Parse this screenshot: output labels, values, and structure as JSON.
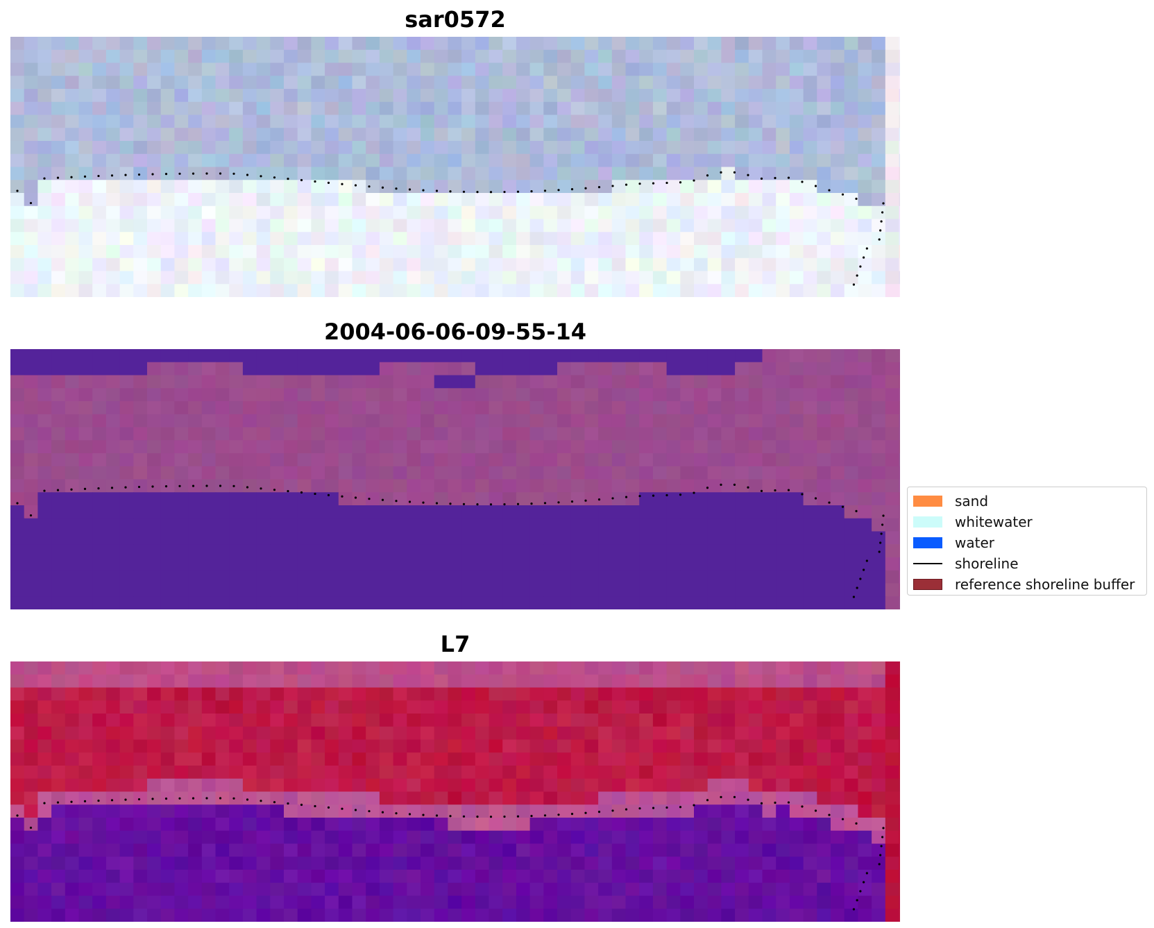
{
  "panels": [
    {
      "title": "sar0572",
      "style": "rgb"
    },
    {
      "title": "2004-06-06-09-55-14",
      "style": "classified"
    },
    {
      "title": "L7",
      "style": "index"
    }
  ],
  "legend": [
    {
      "label": "sand",
      "type": "patch",
      "color": "#ff8c42"
    },
    {
      "label": "whitewater",
      "type": "patch",
      "color": "#ccfcfa"
    },
    {
      "label": "water",
      "type": "patch",
      "color": "#0a5cff"
    },
    {
      "label": "shoreline",
      "type": "line",
      "color": "#000000"
    },
    {
      "label": "reference shoreline buffer",
      "type": "patch",
      "color": "#9b2f37",
      "edge": "#6b1a20"
    }
  ],
  "colors": {
    "rgb_water": "#a7b6da",
    "rgb_sand": "#e8eefa",
    "class_dark": "#54239a",
    "class_mid": "#9b4c8e",
    "index_top": "#c24f86",
    "index_red": "#bb0f3c",
    "index_water": "#5c0a9e"
  }
}
